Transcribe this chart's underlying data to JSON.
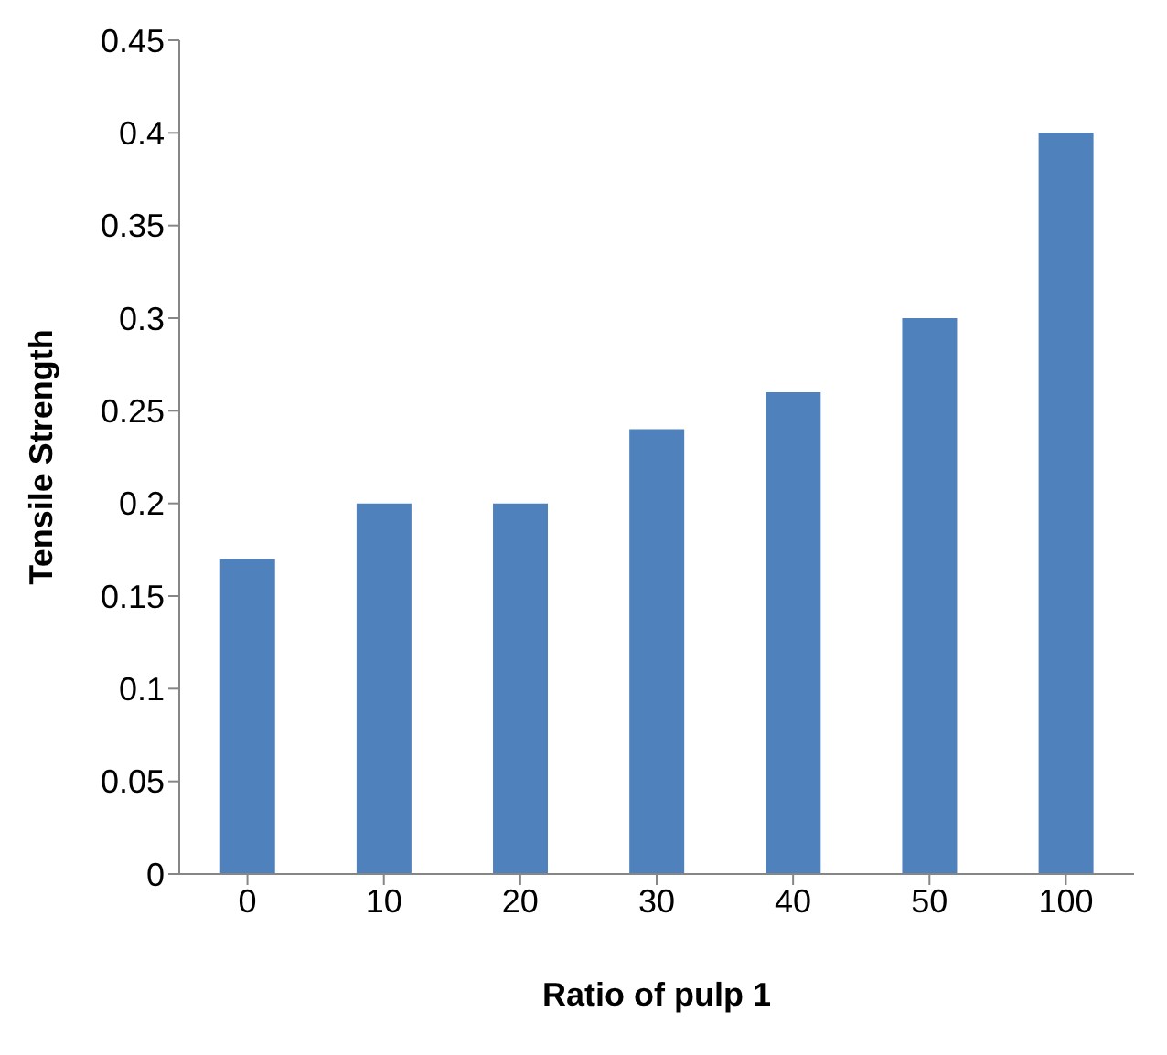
{
  "chart_data": {
    "type": "bar",
    "xlabel": "Ratio of pulp 1",
    "ylabel": "Tensile  Strength",
    "categories": [
      "0",
      "10",
      "20",
      "30",
      "40",
      "50",
      "100"
    ],
    "values": [
      0.17,
      0.2,
      0.2,
      0.24,
      0.26,
      0.3,
      0.4
    ],
    "color": "#4f81bd",
    "ylim": [
      0,
      0.45
    ],
    "yticks": [
      0,
      0.05,
      0.1,
      0.15,
      0.2,
      0.25,
      0.3,
      0.35,
      0.4,
      0.45
    ],
    "grid": false,
    "legend": false
  }
}
